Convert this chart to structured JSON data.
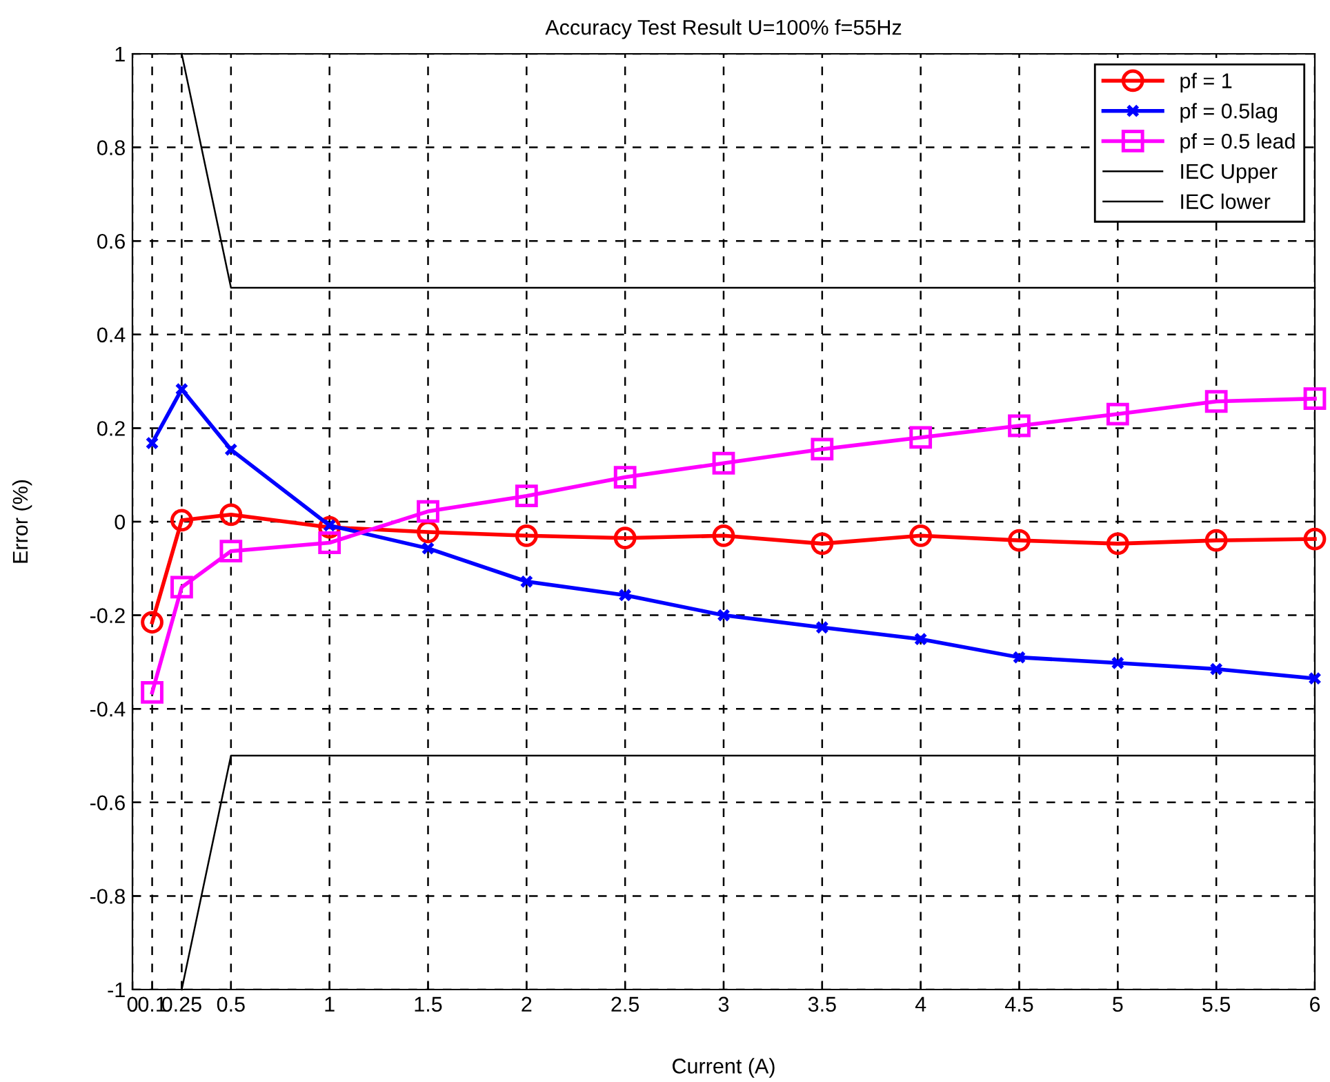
{
  "chart_data": {
    "type": "line",
    "title": "Accuracy Test Result U=100% f=55Hz",
    "xlabel": "Current (A)",
    "ylabel": "Error (%)",
    "x": [
      0.1,
      0.25,
      0.5,
      1,
      1.5,
      2,
      2.5,
      3,
      3.5,
      4,
      4.5,
      5,
      5.5,
      6
    ],
    "series": [
      {
        "name": "pf = 1",
        "color": "#ff0000",
        "marker": "circle",
        "values": [
          -0.215,
          0.003,
          0.015,
          -0.012,
          -0.022,
          -0.03,
          -0.035,
          -0.03,
          -0.047,
          -0.03,
          -0.04,
          -0.047,
          -0.04,
          -0.037
        ]
      },
      {
        "name": "pf = 0.5lag",
        "color": "#0000ff",
        "marker": "cross",
        "values": [
          0.168,
          0.283,
          0.154,
          -0.008,
          -0.057,
          -0.128,
          -0.157,
          -0.2,
          -0.226,
          -0.251,
          -0.29,
          -0.302,
          -0.315,
          -0.335
        ]
      },
      {
        "name": "pf = 0.5 lead",
        "color": "#ff00ff",
        "marker": "square",
        "values": [
          -0.365,
          -0.14,
          -0.063,
          -0.045,
          0.022,
          0.055,
          0.095,
          0.125,
          0.155,
          0.18,
          0.205,
          0.23,
          0.257,
          0.263
        ]
      },
      {
        "name": "IEC Upper",
        "color": "#000000",
        "marker": "none",
        "x": [
          0.25,
          0.5,
          6
        ],
        "values": [
          1,
          0.5,
          0.5
        ]
      },
      {
        "name": "IEC lower",
        "color": "#000000",
        "marker": "none",
        "x": [
          0.25,
          0.5,
          6
        ],
        "values": [
          -1,
          -0.5,
          -0.5
        ]
      }
    ],
    "xlim": [
      0,
      6
    ],
    "xticks": [
      0,
      0.1,
      0.25,
      0.5,
      1,
      1.5,
      2,
      2.5,
      3,
      3.5,
      4,
      4.5,
      5,
      5.5,
      6
    ],
    "ylim": [
      -1,
      1
    ],
    "yticks": [
      -1,
      -0.8,
      -0.6,
      -0.4,
      -0.2,
      0,
      0.2,
      0.4,
      0.6,
      0.8,
      1
    ],
    "grid": true,
    "legend": "top right",
    "line_style": "solid"
  }
}
